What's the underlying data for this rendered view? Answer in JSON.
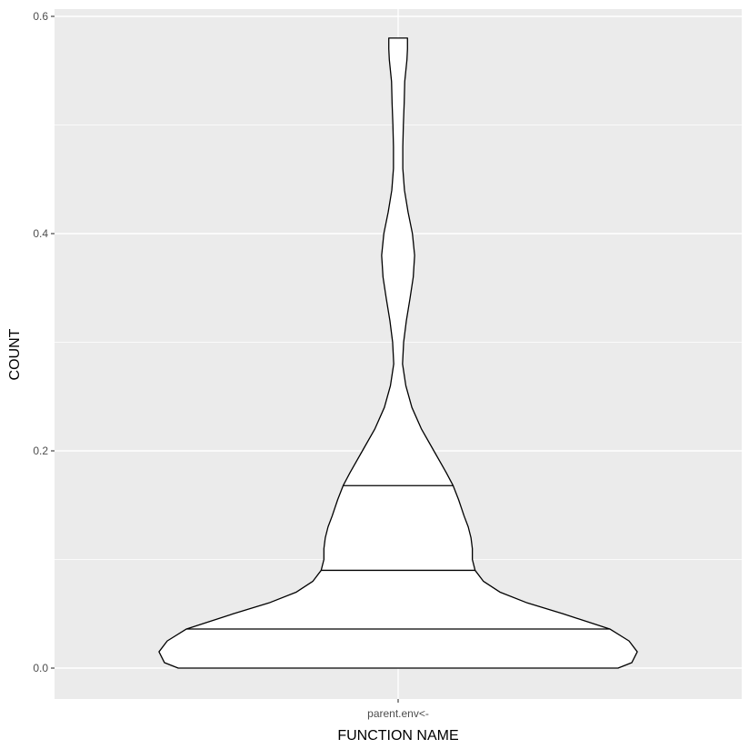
{
  "chart_data": {
    "type": "violin",
    "xlabel": "FUNCTION NAME",
    "ylabel": "COUNT",
    "categories": [
      "parent.env<-"
    ],
    "ylim": [
      -0.025,
      0.62
    ],
    "y_ticks": [
      0.0,
      0.2,
      0.4,
      0.6
    ],
    "y_tick_labels": [
      "0.0",
      "0.2",
      "0.4",
      "0.6"
    ],
    "grid": true,
    "violins": [
      {
        "category": "parent.env<-",
        "quantiles": [
          0.036,
          0.09,
          0.168
        ],
        "fill": "#ffffff",
        "outline": "#000000",
        "profile": [
          {
            "y": 0.0,
            "half_width": 0.8
          },
          {
            "y": 0.005,
            "half_width": 0.85
          },
          {
            "y": 0.015,
            "half_width": 0.87
          },
          {
            "y": 0.025,
            "half_width": 0.84
          },
          {
            "y": 0.036,
            "half_width": 0.77
          },
          {
            "y": 0.05,
            "half_width": 0.6
          },
          {
            "y": 0.06,
            "half_width": 0.47
          },
          {
            "y": 0.07,
            "half_width": 0.37
          },
          {
            "y": 0.08,
            "half_width": 0.31
          },
          {
            "y": 0.09,
            "half_width": 0.28
          },
          {
            "y": 0.1,
            "half_width": 0.27
          },
          {
            "y": 0.11,
            "half_width": 0.27
          },
          {
            "y": 0.12,
            "half_width": 0.265
          },
          {
            "y": 0.13,
            "half_width": 0.255
          },
          {
            "y": 0.14,
            "half_width": 0.24
          },
          {
            "y": 0.155,
            "half_width": 0.22
          },
          {
            "y": 0.168,
            "half_width": 0.2
          },
          {
            "y": 0.18,
            "half_width": 0.175
          },
          {
            "y": 0.2,
            "half_width": 0.13
          },
          {
            "y": 0.22,
            "half_width": 0.085
          },
          {
            "y": 0.24,
            "half_width": 0.05
          },
          {
            "y": 0.26,
            "half_width": 0.028
          },
          {
            "y": 0.28,
            "half_width": 0.016
          },
          {
            "y": 0.3,
            "half_width": 0.02
          },
          {
            "y": 0.32,
            "half_width": 0.03
          },
          {
            "y": 0.34,
            "half_width": 0.043
          },
          {
            "y": 0.36,
            "half_width": 0.055
          },
          {
            "y": 0.38,
            "half_width": 0.06
          },
          {
            "y": 0.4,
            "half_width": 0.052
          },
          {
            "y": 0.42,
            "half_width": 0.036
          },
          {
            "y": 0.44,
            "half_width": 0.023
          },
          {
            "y": 0.46,
            "half_width": 0.017
          },
          {
            "y": 0.48,
            "half_width": 0.017
          },
          {
            "y": 0.5,
            "half_width": 0.019
          },
          {
            "y": 0.52,
            "half_width": 0.022
          },
          {
            "y": 0.54,
            "half_width": 0.024
          },
          {
            "y": 0.56,
            "half_width": 0.032
          },
          {
            "y": 0.57,
            "half_width": 0.034
          },
          {
            "y": 0.58,
            "half_width": 0.034
          }
        ]
      }
    ]
  }
}
